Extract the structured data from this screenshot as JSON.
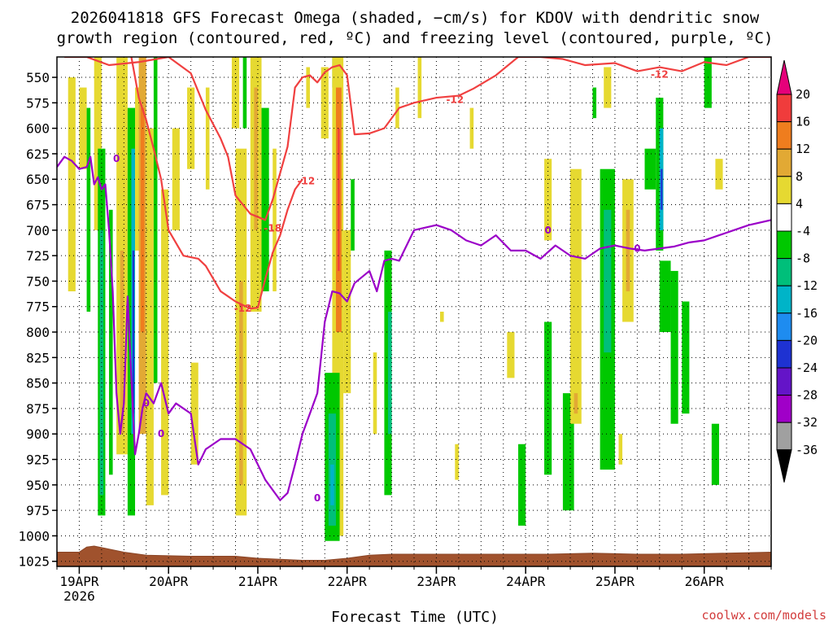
{
  "chart_data": {
    "type": "heatmap",
    "title_line1": "2026041818 GFS Forecast Omega (shaded, −cm/s) for KDOV with dendritic snow",
    "title_line2": "growth region (contoured, red, ºC) and freezing level (contoured, purple, ºC)",
    "xlabel": "Forecast Time (UTC)",
    "credit": "coolwx.com/models",
    "x_range_hours": [
      0,
      192
    ],
    "x_ticks": [
      {
        "hour": 6,
        "label": "19APR",
        "sublabel": "2026"
      },
      {
        "hour": 30,
        "label": "20APR"
      },
      {
        "hour": 54,
        "label": "21APR"
      },
      {
        "hour": 78,
        "label": "22APR"
      },
      {
        "hour": 102,
        "label": "23APR"
      },
      {
        "hour": 126,
        "label": "24APR"
      },
      {
        "hour": 150,
        "label": "25APR"
      },
      {
        "hour": 174,
        "label": "26APR"
      }
    ],
    "y_levels": [
      "550",
      "575",
      "600",
      "625",
      "650",
      "675",
      "700",
      "725",
      "750",
      "775",
      "800",
      "825",
      "850",
      "875",
      "900",
      "925",
      "950",
      "975",
      "1000",
      "1025"
    ],
    "y_range_hpa": [
      530,
      1030
    ],
    "colorbar": {
      "ticks": [
        "20",
        "16",
        "12",
        "8",
        "4",
        "-4",
        "-8",
        "-12",
        "-16",
        "-20",
        "-24",
        "-28",
        "-32",
        "-36"
      ],
      "bins": [
        {
          "min": 20,
          "max": 24,
          "color": "#e5007a"
        },
        {
          "min": 16,
          "max": 20,
          "color": "#f03c3c"
        },
        {
          "min": 12,
          "max": 16,
          "color": "#ef7d1e"
        },
        {
          "min": 8,
          "max": 12,
          "color": "#e2a934"
        },
        {
          "min": 4,
          "max": 8,
          "color": "#e6d931"
        },
        {
          "min": -4,
          "max": 4,
          "color": "#ffffff"
        },
        {
          "min": -8,
          "max": -4,
          "color": "#00c800"
        },
        {
          "min": -12,
          "max": -8,
          "color": "#00bf7a"
        },
        {
          "min": -16,
          "max": -12,
          "color": "#00b4c8"
        },
        {
          "min": -20,
          "max": -16,
          "color": "#1e8cf0"
        },
        {
          "min": -24,
          "max": -20,
          "color": "#1e32d2"
        },
        {
          "min": -28,
          "max": -24,
          "color": "#6414c8"
        },
        {
          "min": -32,
          "max": -28,
          "color": "#a000c8"
        },
        {
          "min": -36,
          "max": -32,
          "color": "#a0a0a0"
        },
        {
          "min": -40,
          "max": -36,
          "color": "#000000"
        }
      ]
    },
    "omega_cells": [
      {
        "t0": 3,
        "t1": 5,
        "p0": 550,
        "p1": 760,
        "v": 5
      },
      {
        "t0": 6,
        "t1": 8,
        "p0": 560,
        "p1": 640,
        "v": 5
      },
      {
        "t0": 8,
        "t1": 9,
        "p0": 580,
        "p1": 780,
        "v": -6
      },
      {
        "t0": 10,
        "t1": 12,
        "p0": 530,
        "p1": 700,
        "v": 5
      },
      {
        "t0": 11,
        "t1": 13,
        "p0": 620,
        "p1": 980,
        "v": -6
      },
      {
        "t0": 11.5,
        "t1": 12.5,
        "p0": 700,
        "p1": 960,
        "v": -10
      },
      {
        "t0": 14,
        "t1": 15,
        "p0": 680,
        "p1": 940,
        "v": -6
      },
      {
        "t0": 16,
        "t1": 19,
        "p0": 530,
        "p1": 920,
        "v": 5
      },
      {
        "t0": 17,
        "t1": 18,
        "p0": 720,
        "p1": 900,
        "v": 9
      },
      {
        "t0": 19,
        "t1": 21,
        "p0": 580,
        "p1": 980,
        "v": -6
      },
      {
        "t0": 20,
        "t1": 21,
        "p0": 620,
        "p1": 900,
        "v": -14
      },
      {
        "t0": 20.3,
        "t1": 20.8,
        "p0": 720,
        "p1": 880,
        "v": -22
      },
      {
        "t0": 21,
        "t1": 22.5,
        "p0": 560,
        "p1": 720,
        "v": 5
      },
      {
        "t0": 22,
        "t1": 24,
        "p0": 530,
        "p1": 900,
        "v": 9
      },
      {
        "t0": 22.5,
        "t1": 23.5,
        "p0": 580,
        "p1": 800,
        "v": 14
      },
      {
        "t0": 24,
        "t1": 26,
        "p0": 600,
        "p1": 970,
        "v": 5
      },
      {
        "t0": 26,
        "t1": 27,
        "p0": 530,
        "p1": 850,
        "v": -6
      },
      {
        "t0": 28,
        "t1": 30,
        "p0": 660,
        "p1": 960,
        "v": 5
      },
      {
        "t0": 31,
        "t1": 33,
        "p0": 600,
        "p1": 700,
        "v": 5
      },
      {
        "t0": 35,
        "t1": 37,
        "p0": 560,
        "p1": 640,
        "v": 5
      },
      {
        "t0": 36,
        "t1": 38,
        "p0": 830,
        "p1": 930,
        "v": 5
      },
      {
        "t0": 40,
        "t1": 41,
        "p0": 560,
        "p1": 660,
        "v": 5
      },
      {
        "t0": 47,
        "t1": 49,
        "p0": 530,
        "p1": 600,
        "v": 5
      },
      {
        "t0": 48,
        "t1": 51,
        "p0": 620,
        "p1": 980,
        "v": 5
      },
      {
        "t0": 49,
        "t1": 50,
        "p0": 750,
        "p1": 950,
        "v": 9
      },
      {
        "t0": 50,
        "t1": 51,
        "p0": 530,
        "p1": 600,
        "v": -6
      },
      {
        "t0": 52,
        "t1": 55,
        "p0": 530,
        "p1": 780,
        "v": 5
      },
      {
        "t0": 53,
        "t1": 54,
        "p0": 560,
        "p1": 700,
        "v": 9
      },
      {
        "t0": 55,
        "t1": 57,
        "p0": 580,
        "p1": 760,
        "v": -6
      },
      {
        "t0": 58,
        "t1": 59,
        "p0": 620,
        "p1": 760,
        "v": 5
      },
      {
        "t0": 67,
        "t1": 68,
        "p0": 540,
        "p1": 580,
        "v": 5
      },
      {
        "t0": 71,
        "t1": 73,
        "p0": 540,
        "p1": 610,
        "v": 5
      },
      {
        "t0": 74,
        "t1": 75.5,
        "p0": 530,
        "p1": 560,
        "v": -6
      },
      {
        "t0": 74,
        "t1": 77,
        "p0": 530,
        "p1": 1000,
        "v": 5
      },
      {
        "t0": 75,
        "t1": 76.5,
        "p0": 560,
        "p1": 800,
        "v": 14
      },
      {
        "t0": 75.5,
        "t1": 76,
        "p0": 600,
        "p1": 740,
        "v": 18
      },
      {
        "t0": 72,
        "t1": 76,
        "p0": 840,
        "p1": 1005,
        "v": -6
      },
      {
        "t0": 73,
        "t1": 75,
        "p0": 880,
        "p1": 990,
        "v": -10
      },
      {
        "t0": 73.5,
        "t1": 74.5,
        "p0": 930,
        "p1": 970,
        "v": -14
      },
      {
        "t0": 77,
        "t1": 79,
        "p0": 700,
        "p1": 860,
        "v": 5
      },
      {
        "t0": 79,
        "t1": 80,
        "p0": 650,
        "p1": 720,
        "v": -6
      },
      {
        "t0": 85,
        "t1": 86,
        "p0": 820,
        "p1": 900,
        "v": 5
      },
      {
        "t0": 88,
        "t1": 90,
        "p0": 720,
        "p1": 960,
        "v": -6
      },
      {
        "t0": 89,
        "t1": 90,
        "p0": 780,
        "p1": 900,
        "v": -10
      },
      {
        "t0": 91,
        "t1": 92,
        "p0": 560,
        "p1": 600,
        "v": 5
      },
      {
        "t0": 97,
        "t1": 98,
        "p0": 530,
        "p1": 590,
        "v": 5
      },
      {
        "t0": 103,
        "t1": 104,
        "p0": 780,
        "p1": 790,
        "v": 5
      },
      {
        "t0": 107,
        "t1": 108,
        "p0": 910,
        "p1": 945,
        "v": 5
      },
      {
        "t0": 111,
        "t1": 112,
        "p0": 580,
        "p1": 620,
        "v": 5
      },
      {
        "t0": 121,
        "t1": 123,
        "p0": 800,
        "p1": 845,
        "v": 5
      },
      {
        "t0": 124,
        "t1": 126,
        "p0": 910,
        "p1": 990,
        "v": -6
      },
      {
        "t0": 131,
        "t1": 133,
        "p0": 630,
        "p1": 710,
        "v": 5
      },
      {
        "t0": 131,
        "t1": 133,
        "p0": 790,
        "p1": 940,
        "v": -6
      },
      {
        "t0": 136,
        "t1": 139,
        "p0": 860,
        "p1": 975,
        "v": -6
      },
      {
        "t0": 138,
        "t1": 141,
        "p0": 640,
        "p1": 890,
        "v": 5
      },
      {
        "t0": 139,
        "t1": 140,
        "p0": 860,
        "p1": 880,
        "v": 9
      },
      {
        "t0": 144,
        "t1": 145,
        "p0": 560,
        "p1": 590,
        "v": -6
      },
      {
        "t0": 147,
        "t1": 149,
        "p0": 540,
        "p1": 580,
        "v": 5
      },
      {
        "t0": 146,
        "t1": 150,
        "p0": 640,
        "p1": 935,
        "v": -6
      },
      {
        "t0": 147,
        "t1": 149,
        "p0": 680,
        "p1": 820,
        "v": -10
      },
      {
        "t0": 151,
        "t1": 152,
        "p0": 900,
        "p1": 930,
        "v": 5
      },
      {
        "t0": 152,
        "t1": 155,
        "p0": 650,
        "p1": 790,
        "v": 5
      },
      {
        "t0": 153,
        "t1": 154,
        "p0": 680,
        "p1": 760,
        "v": 9
      },
      {
        "t0": 158,
        "t1": 161,
        "p0": 620,
        "p1": 660,
        "v": -6
      },
      {
        "t0": 161,
        "t1": 163,
        "p0": 570,
        "p1": 720,
        "v": -6
      },
      {
        "t0": 162,
        "t1": 163,
        "p0": 600,
        "p1": 700,
        "v": -14
      },
      {
        "t0": 162.3,
        "t1": 162.8,
        "p0": 640,
        "p1": 680,
        "v": -22
      },
      {
        "t0": 162,
        "t1": 165,
        "p0": 730,
        "p1": 800,
        "v": -6
      },
      {
        "t0": 165,
        "t1": 167,
        "p0": 740,
        "p1": 890,
        "v": -6
      },
      {
        "t0": 168,
        "t1": 170,
        "p0": 770,
        "p1": 880,
        "v": -6
      },
      {
        "t0": 174,
        "t1": 176,
        "p0": 530,
        "p1": 580,
        "v": -6
      },
      {
        "t0": 177,
        "t1": 179,
        "p0": 630,
        "p1": 660,
        "v": 5
      },
      {
        "t0": 176,
        "t1": 178,
        "p0": 890,
        "p1": 950,
        "v": -6
      }
    ],
    "surface_pressure": {
      "hours": [
        0,
        6,
        8,
        10,
        14,
        18,
        24,
        36,
        48,
        54,
        60,
        66,
        72,
        78,
        84,
        90,
        96,
        108,
        120,
        132,
        144,
        156,
        168,
        180,
        192
      ],
      "hpa": [
        1016,
        1016,
        1011,
        1010,
        1013,
        1016,
        1019,
        1020,
        1020,
        1022,
        1023,
        1024,
        1024,
        1022,
        1019,
        1018,
        1018,
        1018,
        1018,
        1018,
        1017,
        1018,
        1018,
        1017,
        1016
      ]
    },
    "contours": [
      {
        "name": "dgz-red-main",
        "color": "#f04040",
        "hours": [
          2,
          8,
          14,
          22,
          30,
          36,
          40,
          44,
          46,
          48,
          52,
          56,
          58,
          62,
          64,
          66,
          68,
          70,
          72,
          74,
          76,
          78,
          80,
          84,
          88,
          92,
          96,
          102,
          108,
          112,
          118,
          124,
          130,
          136,
          142,
          150,
          156,
          162,
          168,
          174,
          180,
          186,
          192
        ],
        "hpa": [
          530,
          530,
          538,
          535,
          530,
          546,
          582,
          610,
          628,
          666,
          684,
          690,
          670,
          618,
          560,
          550,
          548,
          555,
          545,
          540,
          538,
          548,
          606,
          605,
          600,
          580,
          575,
          570,
          568,
          561,
          548,
          530,
          530,
          532,
          538,
          536,
          544,
          540,
          544,
          535,
          538,
          530,
          530
        ]
      },
      {
        "name": "dgz-red-inner",
        "color": "#f04040",
        "hours": [
          20,
          22,
          24,
          26,
          28,
          30,
          34,
          38,
          40,
          44,
          46,
          48,
          52,
          54,
          56,
          58,
          60,
          62,
          64,
          66
        ],
        "hpa": [
          530,
          570,
          592,
          620,
          650,
          700,
          725,
          728,
          735,
          760,
          765,
          770,
          777,
          776,
          748,
          722,
          705,
          680,
          660,
          650
        ]
      },
      {
        "name": "freezing-level",
        "color": "#9b00c8",
        "hours": [
          0,
          2,
          4,
          6,
          8,
          9,
          10,
          11,
          12,
          13,
          14,
          15,
          16,
          17,
          18,
          19,
          20,
          21,
          22,
          23,
          24,
          26,
          28,
          30,
          32,
          34,
          36,
          38,
          40,
          44,
          48,
          52,
          56,
          60,
          62,
          64,
          66,
          68,
          70,
          72,
          74,
          76,
          78,
          80,
          84,
          86,
          88,
          90,
          92,
          96,
          102,
          106,
          110,
          114,
          118,
          122,
          126,
          130,
          134,
          138,
          142,
          146,
          150,
          154,
          158,
          162,
          166,
          170,
          174,
          178,
          182,
          186,
          192
        ],
        "hpa": [
          638,
          628,
          632,
          640,
          638,
          628,
          655,
          648,
          660,
          655,
          700,
          760,
          860,
          900,
          870,
          765,
          845,
          920,
          900,
          875,
          860,
          870,
          850,
          880,
          870,
          875,
          880,
          930,
          915,
          905,
          905,
          915,
          945,
          965,
          958,
          930,
          900,
          880,
          860,
          790,
          760,
          762,
          770,
          752,
          740,
          760,
          730,
          728,
          730,
          700,
          695,
          700,
          710,
          715,
          705,
          720,
          720,
          728,
          715,
          725,
          728,
          718,
          715,
          718,
          720,
          718,
          716,
          712,
          710,
          705,
          700,
          695,
          690
        ]
      }
    ],
    "contour_labels": [
      {
        "text": "-12",
        "hour": 107,
        "hpa": 572,
        "color": "#f04040"
      },
      {
        "text": "-12",
        "hour": 162,
        "hpa": 547,
        "color": "#f04040"
      },
      {
        "text": "-12",
        "hour": 67,
        "hpa": 652,
        "color": "#f04040"
      },
      {
        "text": "-18",
        "hour": 58,
        "hpa": 698,
        "color": "#f04040"
      },
      {
        "text": "-12",
        "hour": 50,
        "hpa": 777,
        "color": "#f04040"
      },
      {
        "text": "0",
        "hour": 16,
        "hpa": 630,
        "color": "#9b00c8"
      },
      {
        "text": "0",
        "hour": 132,
        "hpa": 700,
        "color": "#9b00c8"
      },
      {
        "text": "0",
        "hour": 156,
        "hpa": 718,
        "color": "#9b00c8"
      },
      {
        "text": "0",
        "hour": 24,
        "hpa": 870,
        "color": "#9b00c8"
      },
      {
        "text": "0",
        "hour": 28,
        "hpa": 900,
        "color": "#9b00c8"
      },
      {
        "text": "0",
        "hour": 70,
        "hpa": 963,
        "color": "#9b00c8"
      }
    ]
  }
}
